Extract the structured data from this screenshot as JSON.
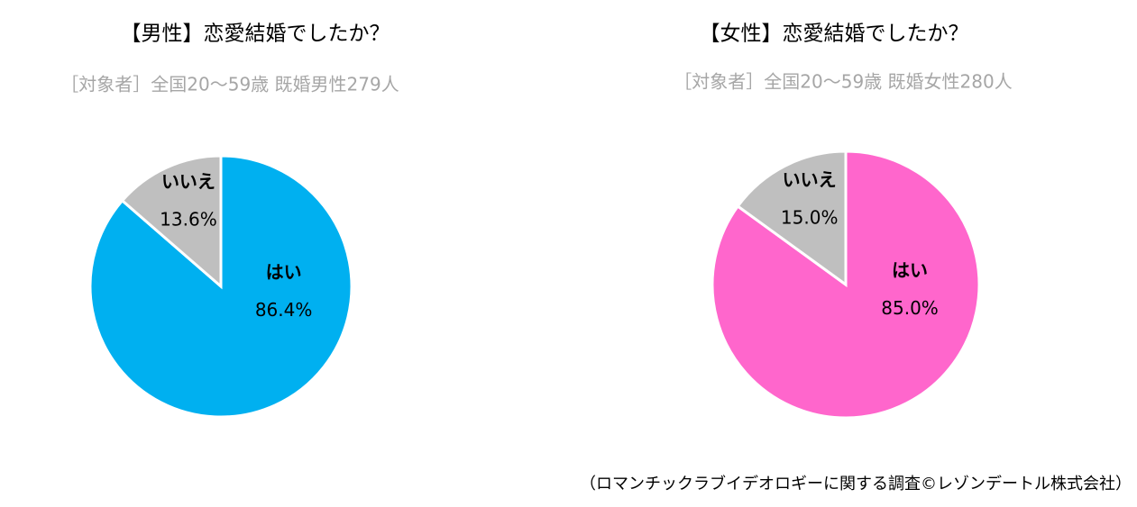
{
  "chart_data": [
    {
      "type": "pie",
      "title": "【男性】恋愛結婚でしたか？",
      "subtitle": "［対象者］全国20～59歳 既婚男性279人",
      "categories": [
        "はい",
        "いいえ"
      ],
      "values": [
        86.4,
        13.6
      ],
      "value_labels": [
        "86.4%",
        "13.6%"
      ],
      "colors": [
        "#00b0f0",
        "#bfbfbf"
      ]
    },
    {
      "type": "pie",
      "title": "【女性】恋愛結婚でしたか？",
      "subtitle": "［対象者］全国20～59歳 既婚女性280人",
      "categories": [
        "はい",
        "いいえ"
      ],
      "values": [
        85.0,
        15.0
      ],
      "value_labels": [
        "85.0%",
        "15.0%"
      ],
      "colors": [
        "#ff66cc",
        "#bfbfbf"
      ]
    }
  ],
  "source": "（ロマンチックラブイデオロギーに関する調査©レゾンデートル株式会社）"
}
